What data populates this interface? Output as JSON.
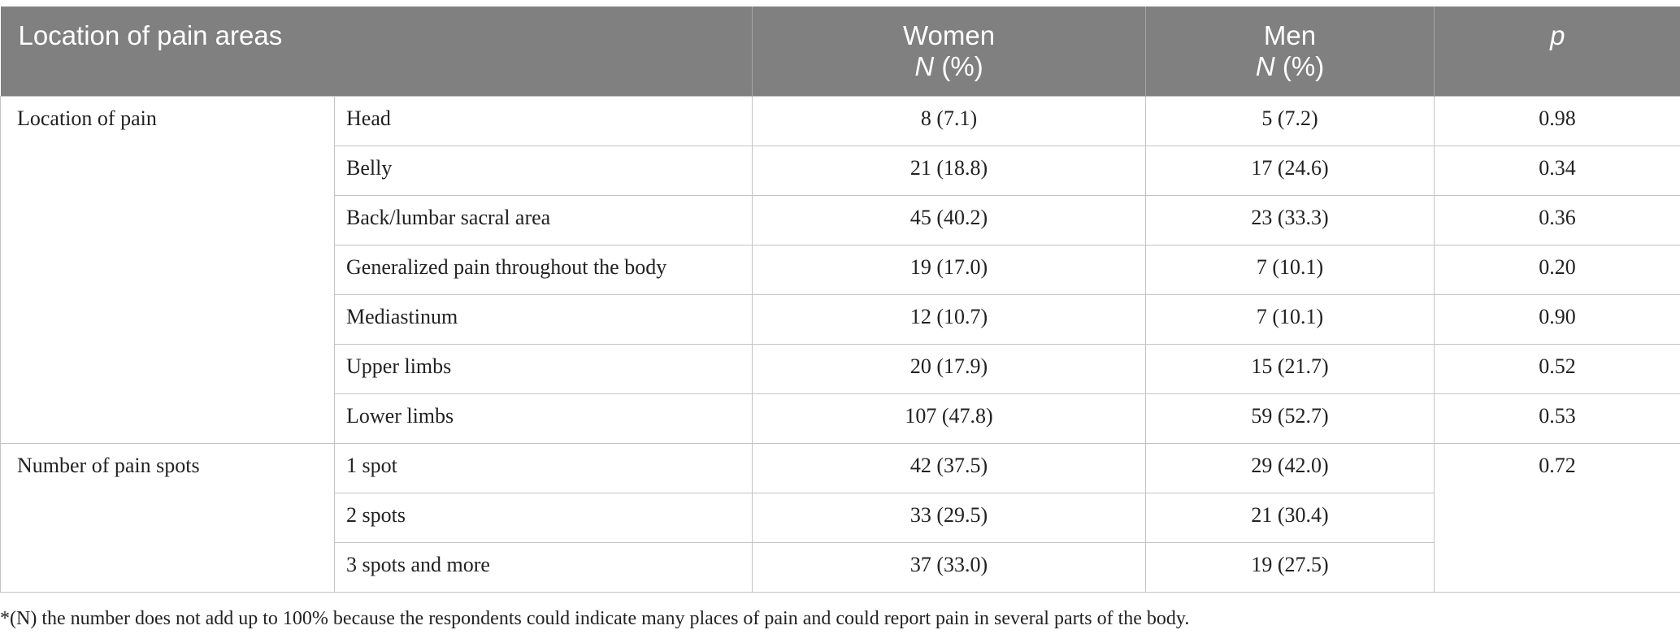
{
  "table": {
    "headers": {
      "label": "Location of pain areas",
      "women": "Women",
      "men": "Men",
      "unit_n": "N",
      "unit_pct": " (%)",
      "p": "p"
    },
    "groups": [
      {
        "name": "Location of pain",
        "rows": [
          {
            "label": "Head",
            "women": "8 (7.1)",
            "men": "5 (7.2)",
            "p": "0.98"
          },
          {
            "label": "Belly",
            "women": "21 (18.8)",
            "men": "17 (24.6)",
            "p": "0.34"
          },
          {
            "label": "Back/lumbar sacral area",
            "women": "45 (40.2)",
            "men": "23 (33.3)",
            "p": "0.36"
          },
          {
            "label": "Generalized pain throughout the body",
            "women": "19 (17.0)",
            "men": "7 (10.1)",
            "p": "0.20"
          },
          {
            "label": "Mediastinum",
            "women": "12 (10.7)",
            "men": "7 (10.1)",
            "p": "0.90"
          },
          {
            "label": "Upper limbs",
            "women": "20 (17.9)",
            "men": "15 (21.7)",
            "p": "0.52"
          },
          {
            "label": "Lower limbs",
            "women": "107 (47.8)",
            "men": "59 (52.7)",
            "p": "0.53"
          }
        ]
      },
      {
        "name": "Number of pain spots",
        "p": "0.72",
        "rows": [
          {
            "label": "1 spot",
            "women": "42 (37.5)",
            "men": "29 (42.0)"
          },
          {
            "label": "2 spots",
            "women": "33 (29.5)",
            "men": "21 (30.4)"
          },
          {
            "label": "3 spots and more",
            "women": "37 (33.0)",
            "men": "19 (27.5)"
          }
        ]
      }
    ]
  },
  "footnote": "*(N) the number does not add up to 100% because the respondents could indicate many places of pain and could report pain in several parts of the body."
}
